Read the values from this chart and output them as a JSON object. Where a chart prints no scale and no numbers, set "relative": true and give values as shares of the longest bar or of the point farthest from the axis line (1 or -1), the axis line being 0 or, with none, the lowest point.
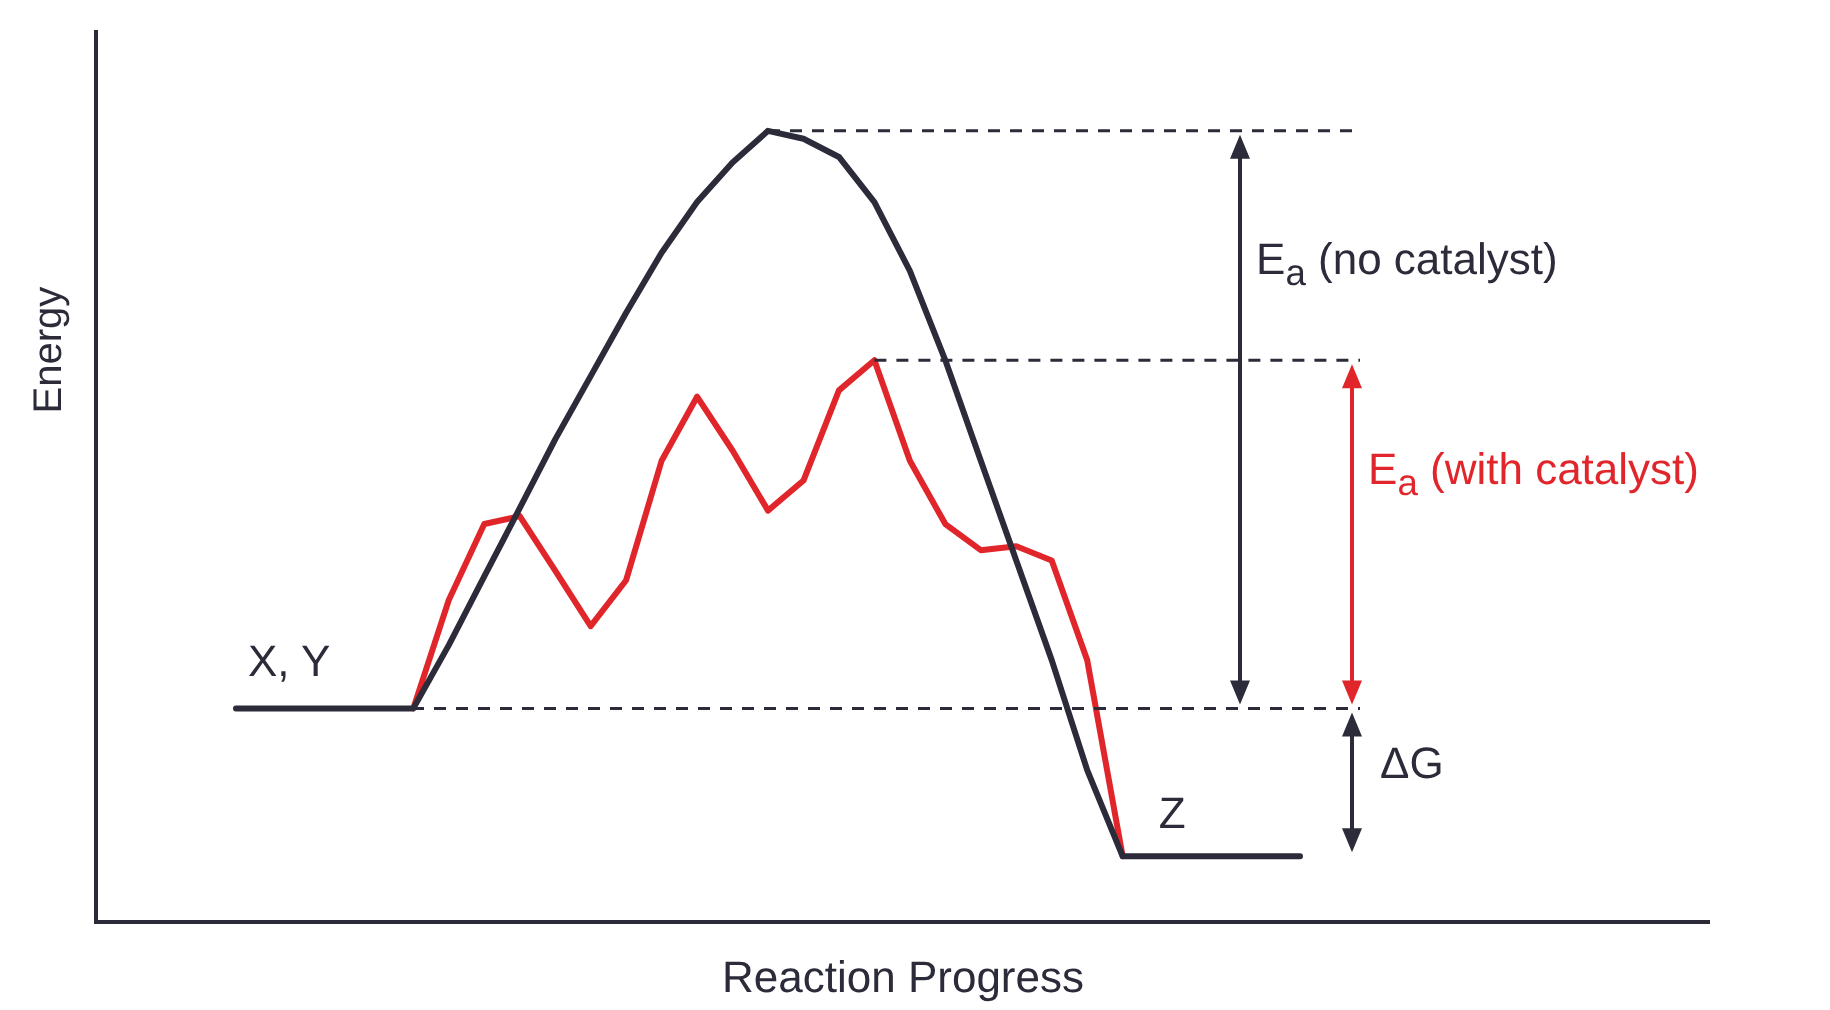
{
  "chart_data": {
    "type": "line",
    "relative": true,
    "xlabel": "Reaction Progress",
    "ylabel": "Energy",
    "legend": false,
    "marker": "none",
    "line_style": "solid",
    "categories": [
      null,
      null,
      null,
      null,
      null,
      null,
      null,
      null,
      null,
      null,
      null,
      null,
      null,
      null,
      null,
      null,
      null,
      null,
      null,
      null,
      null,
      null,
      null,
      null,
      null,
      null,
      null,
      null,
      null,
      null,
      null
    ],
    "series": [
      {
        "color": "#2b2b3a",
        "values": [
          0.27,
          0.27,
          0.27,
          0.27,
          0.27,
          0.27,
          0.35,
          0.437,
          0.523,
          0.61,
          0.69,
          0.77,
          0.846,
          0.91,
          0.96,
          1,
          0.99,
          0.967,
          0.91,
          0.823,
          0.71,
          0.583,
          0.457,
          0.331,
          0.192,
          0.083,
          0.083,
          0.083,
          0.083,
          0.083,
          0.083
        ]
      },
      {
        "color": "#e0262b",
        "values": [
          null,
          null,
          null,
          null,
          null,
          0.27,
          0.407,
          0.503,
          0.513,
          0.444,
          0.374,
          0.432,
          0.583,
          0.664,
          0.596,
          0.52,
          0.558,
          0.672,
          0.71,
          0.583,
          0.503,
          0.47,
          0.475,
          0.457,
          0.331,
          0.083,
          null,
          null,
          null,
          null,
          null
        ]
      }
    ],
    "ref_lines": [
      {
        "axis": "y",
        "value": 1,
        "line_style": "dashed"
      },
      {
        "axis": "y",
        "value": 0.71,
        "line_style": "dashed"
      },
      {
        "axis": "y",
        "value": 0.27,
        "line_style": "dashed"
      }
    ],
    "annotations": [
      "X, Y",
      "Z",
      "E$_{a}$ (no catalyst)",
      "E$_{a}$ (with catalyst)",
      "ΔG"
    ]
  }
}
